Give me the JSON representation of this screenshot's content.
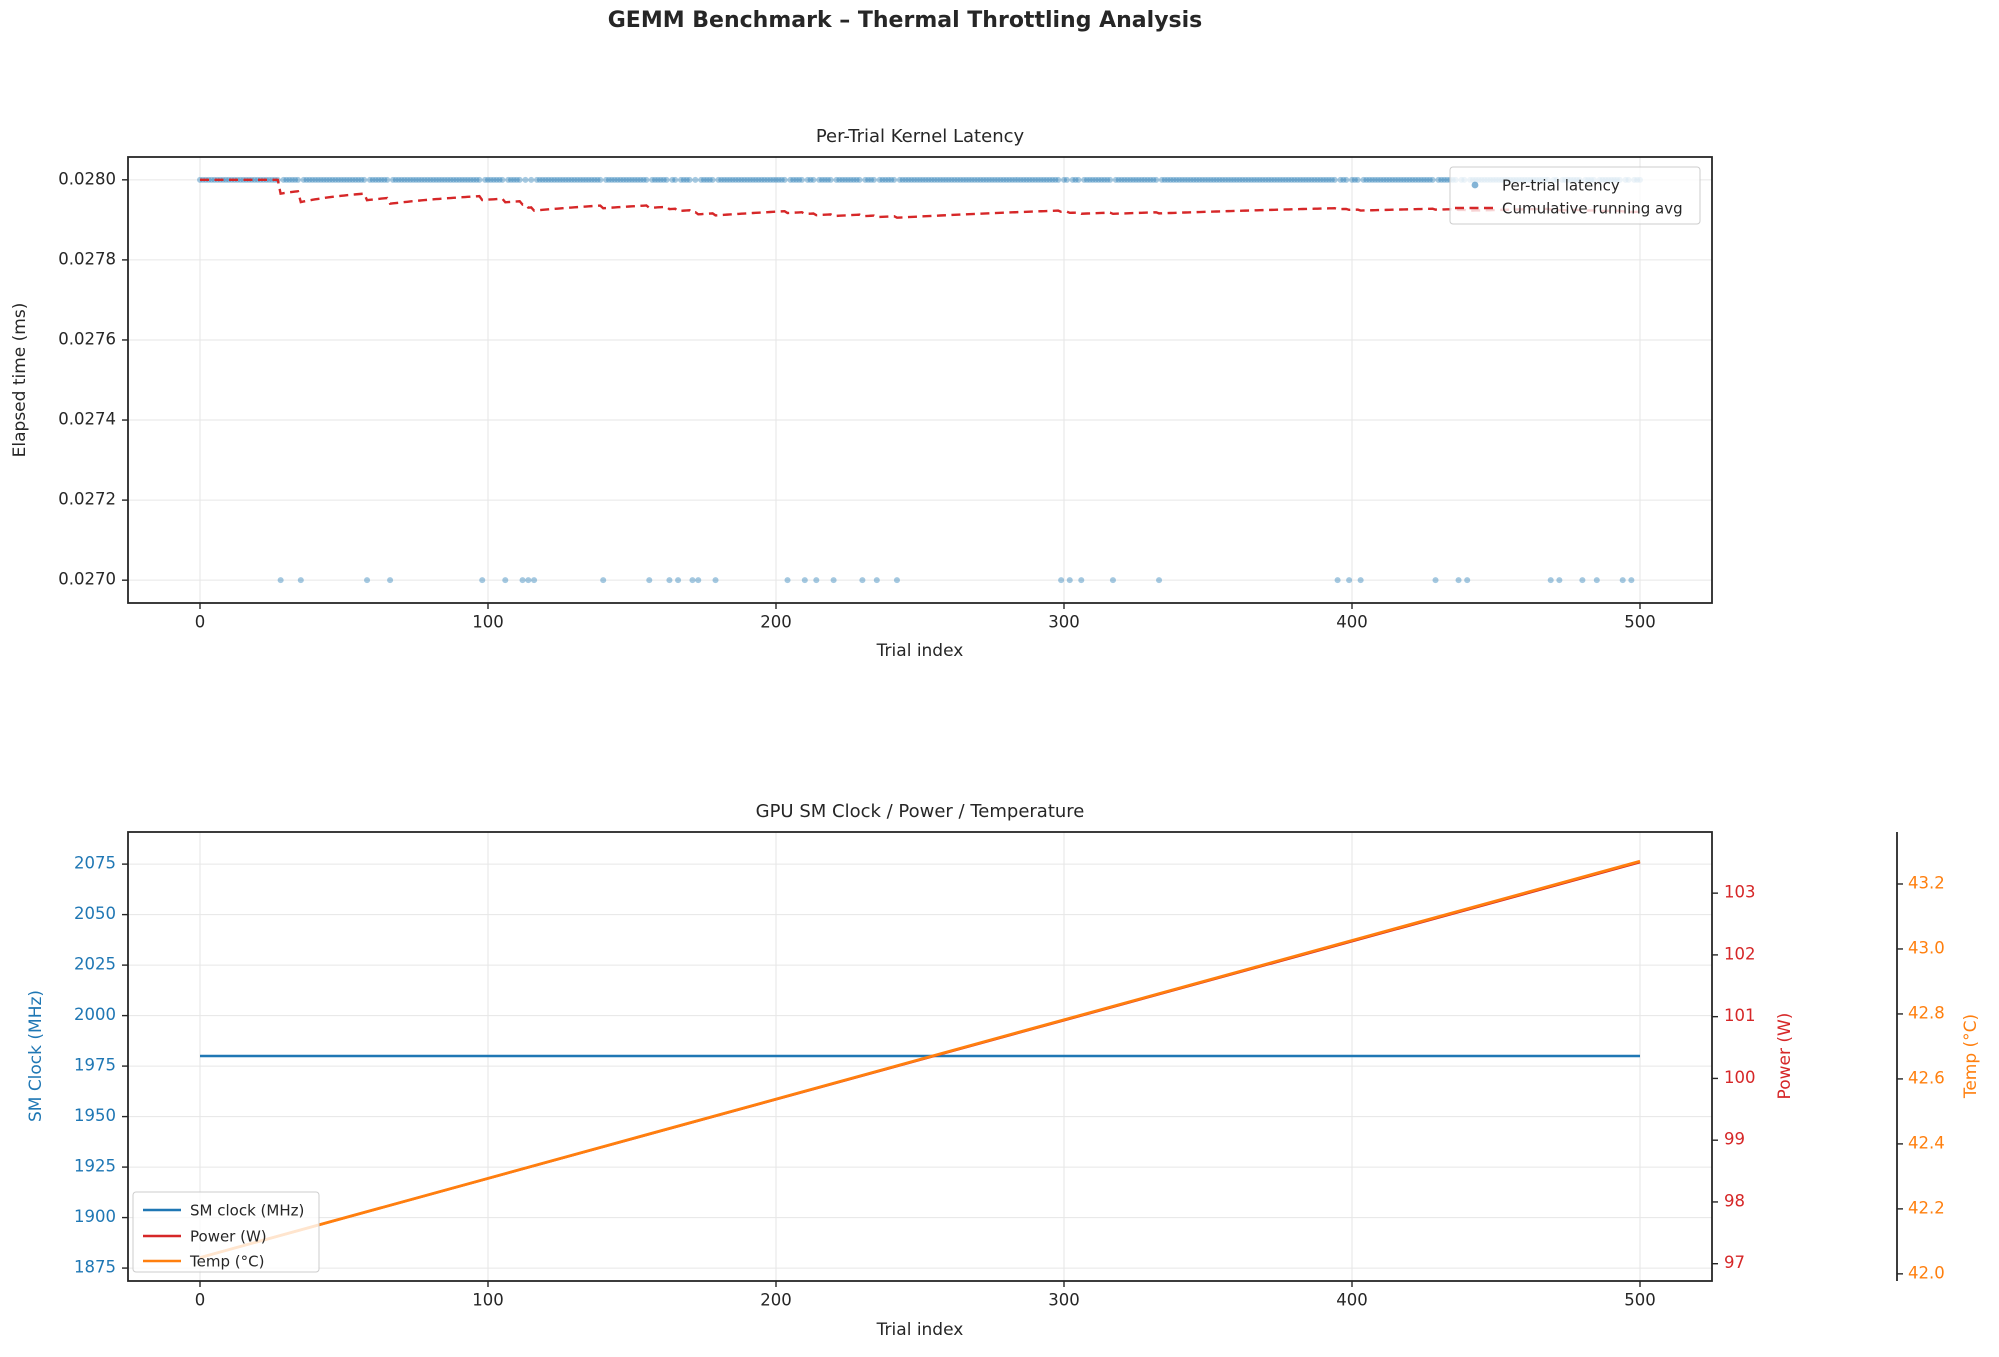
{
  "figure": {
    "suptitle": "GEMM Benchmark – Thermal Throttling Analysis",
    "background": "#ffffff"
  },
  "colors": {
    "blue": "#1f77b4",
    "red": "#d62728",
    "orange": "#ff7f0e",
    "grid": "#e6e6e6",
    "spine": "#262626",
    "text": "#262626",
    "legend_border": "#cccccc",
    "legend_bg": "#ffffff"
  },
  "chart_data": [
    {
      "id": "latency",
      "type": "scatter",
      "title": "Per-Trial Kernel Latency",
      "xlabel": "Trial index",
      "ylabel": "Elapsed time (ms)",
      "xlim": [
        -25,
        525
      ],
      "ylim": [
        0.026943,
        0.028057
      ],
      "xticks": [
        0,
        100,
        200,
        300,
        400,
        500
      ],
      "yticks": [
        "0.0280",
        "0.0278",
        "0.0276",
        "0.0274",
        "0.0272",
        "0.0270"
      ],
      "grid": true,
      "n_trials": 501,
      "base_latency_ms": 0.028,
      "outlier_latency_ms": 0.027,
      "outlier_trials": [
        28,
        35,
        58,
        66,
        98,
        106,
        112,
        114,
        116,
        140,
        156,
        163,
        166,
        171,
        173,
        179,
        204,
        210,
        214,
        220,
        230,
        235,
        242,
        299,
        302,
        306,
        317,
        333,
        395,
        399,
        403,
        429,
        437,
        440,
        469,
        472,
        480,
        485,
        494,
        497
      ],
      "series": [
        {
          "name": "Per-trial latency",
          "kind": "scatter",
          "color": "#1f77b4",
          "opacity": 0.4
        },
        {
          "name": "Cumulative running avg",
          "kind": "line",
          "style": "dashed",
          "color": "#d62728"
        }
      ],
      "legend": {
        "position": "upper right",
        "items": [
          "Per-trial latency",
          "Cumulative running avg"
        ]
      }
    },
    {
      "id": "telemetry",
      "type": "line",
      "title": "GPU SM Clock / Power / Temperature",
      "xlabel": "Trial index",
      "xlim": [
        -25,
        525
      ],
      "xticks": [
        0,
        100,
        200,
        300,
        400,
        500
      ],
      "grid": true,
      "axes": [
        {
          "key": "sm_clock",
          "label": "SM Clock (MHz)",
          "side": "left",
          "color": "#1f77b4",
          "ticks": [
            "2075",
            "2050",
            "2025",
            "2000",
            "1975",
            "1950",
            "1925",
            "1900",
            "1875"
          ],
          "ylim": [
            1868.6,
            2090.9
          ]
        },
        {
          "key": "power",
          "label": "Power (W)",
          "side": "right",
          "color": "#d62728",
          "ticks": [
            "103",
            "102",
            "101",
            "100",
            "99",
            "98",
            "97"
          ],
          "ylim": [
            96.72,
            103.99
          ]
        },
        {
          "key": "temp",
          "label": "Temp (°C)",
          "side": "right-offset",
          "color": "#ff7f0e",
          "ticks": [
            "43.2",
            "43.0",
            "42.8",
            "42.6",
            "42.4",
            "42.2",
            "42.0"
          ],
          "ylim": [
            41.978,
            43.36
          ]
        }
      ],
      "series": [
        {
          "name": "SM clock (MHz)",
          "axis": "sm_clock",
          "color": "#1f77b4",
          "x": [
            0,
            500
          ],
          "y": [
            1980,
            1980
          ]
        },
        {
          "name": "Power (W)",
          "axis": "power",
          "color": "#d62728",
          "x": [
            0,
            500
          ],
          "y": [
            97.1,
            103.5
          ]
        },
        {
          "name": "Temp (°C)",
          "axis": "temp",
          "color": "#ff7f0e",
          "x": [
            0,
            500
          ],
          "y": [
            42.05,
            43.27
          ]
        }
      ],
      "legend": {
        "position": "lower left",
        "items": [
          "SM clock (MHz)",
          "Power (W)",
          "Temp (°C)"
        ]
      }
    }
  ]
}
